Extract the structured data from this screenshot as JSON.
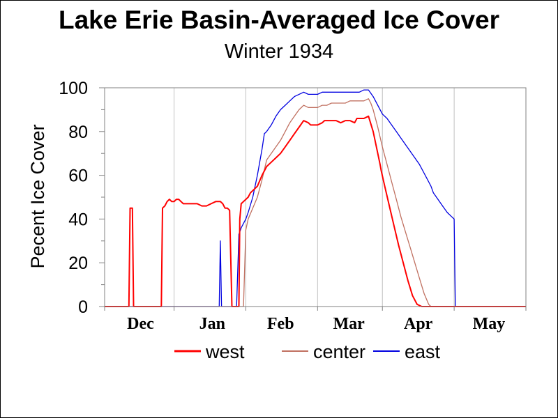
{
  "chart_data": {
    "type": "line",
    "title": "Lake Erie Basin-Averaged Ice Cover",
    "subtitle": "Winter 1934",
    "ylabel": "Pecent Ice Cover",
    "xlabel": "",
    "ylim": [
      0,
      100
    ],
    "yticks": [
      "0",
      "20",
      "40",
      "60",
      "80",
      "100"
    ],
    "xlim": [
      0,
      182
    ],
    "month_labels": [
      {
        "label": "Dec",
        "x": 15.5
      },
      {
        "label": "Jan",
        "x": 46.5
      },
      {
        "label": "Feb",
        "x": 76
      },
      {
        "label": "Mar",
        "x": 105.5
      },
      {
        "label": "Apr",
        "x": 135.5
      },
      {
        "label": "May",
        "x": 166
      }
    ],
    "month_boundaries": [
      30,
      61,
      92,
      120,
      151
    ],
    "legend_position": "bottom",
    "grid": true,
    "series": [
      {
        "name": "west",
        "color": "#ff0000",
        "x": [
          0,
          10.5,
          11,
          12,
          12.5,
          24.5,
          25,
          26,
          27,
          28,
          29,
          30,
          31,
          32,
          33,
          34,
          36,
          38,
          40,
          42,
          44,
          46,
          48,
          50,
          51,
          52,
          53,
          54,
          55,
          55.3,
          58,
          58.4,
          59,
          60,
          62,
          63,
          64,
          66,
          68,
          70,
          72,
          74,
          76,
          78,
          80,
          82,
          84,
          86,
          88,
          89,
          90,
          92,
          94,
          95,
          96,
          98,
          100,
          102,
          104,
          106,
          108,
          109,
          110,
          112,
          114,
          116,
          118,
          119,
          119.5,
          121,
          123,
          125,
          127,
          129,
          131,
          133,
          135,
          137,
          138,
          139,
          140,
          141,
          182
        ],
        "y": [
          0,
          0,
          45,
          45,
          0,
          0,
          45,
          46,
          48,
          49,
          48,
          48,
          49,
          49,
          48,
          47,
          47,
          47,
          47,
          46,
          46,
          47,
          48,
          48,
          47,
          45,
          45,
          44,
          0,
          0,
          0,
          40,
          47,
          48,
          50,
          52,
          53,
          55,
          60,
          64,
          66,
          68,
          70,
          73,
          76,
          79,
          82,
          85,
          84,
          83,
          83,
          83,
          84,
          85,
          85,
          85,
          85,
          84,
          85,
          85,
          84,
          86,
          86,
          86,
          87,
          80,
          70,
          65,
          62,
          55,
          46,
          37,
          28,
          20,
          12,
          5,
          1,
          0,
          0,
          0,
          0,
          0,
          0
        ]
      },
      {
        "name": "center",
        "color": "#c07060",
        "x": [
          0,
          60,
          61,
          62,
          64,
          66,
          68,
          70,
          72,
          74,
          76,
          78,
          80,
          82,
          84,
          86,
          88,
          90,
          92,
          94,
          96,
          98,
          100,
          102,
          104,
          106,
          108,
          110,
          112,
          114,
          115,
          116,
          118,
          120,
          122,
          124,
          126,
          128,
          130,
          132,
          134,
          136,
          138,
          140,
          141,
          142,
          182
        ],
        "y": [
          0,
          0,
          35,
          40,
          45,
          50,
          58,
          67,
          70,
          73,
          76,
          80,
          84,
          87,
          90,
          92,
          91,
          91,
          91,
          92,
          92,
          93,
          93,
          93,
          93,
          94,
          94,
          94,
          94,
          95,
          93,
          90,
          82,
          73,
          65,
          57,
          49,
          41,
          34,
          27,
          20,
          13,
          6,
          1,
          0,
          0,
          0
        ]
      },
      {
        "name": "east",
        "color": "#0000e0",
        "x": [
          0,
          49.5,
          50,
          50.5,
          57,
          58,
          59,
          60,
          61,
          62,
          64,
          66,
          68,
          69,
          70,
          72,
          74,
          76,
          78,
          80,
          82,
          84,
          86,
          88,
          90,
          92,
          94,
          96,
          98,
          100,
          102,
          104,
          106,
          108,
          110,
          112,
          114,
          116,
          118,
          120,
          122,
          124,
          126,
          128,
          130,
          132,
          134,
          136,
          138,
          140,
          141,
          142,
          144,
          146,
          148,
          150,
          151,
          151.5,
          182
        ],
        "y": [
          0,
          0,
          30,
          0,
          0,
          33,
          36,
          38,
          40,
          43,
          50,
          60,
          72,
          79,
          80,
          83,
          87,
          90,
          92,
          94,
          96,
          97,
          98,
          97,
          97,
          97,
          98,
          98,
          98,
          98,
          98,
          98,
          98,
          98,
          98,
          99,
          99,
          96,
          92,
          88,
          86,
          83,
          80,
          77,
          74,
          71,
          68,
          65,
          61,
          57,
          55,
          52,
          49,
          46,
          43,
          41,
          40,
          0,
          0
        ]
      }
    ]
  }
}
